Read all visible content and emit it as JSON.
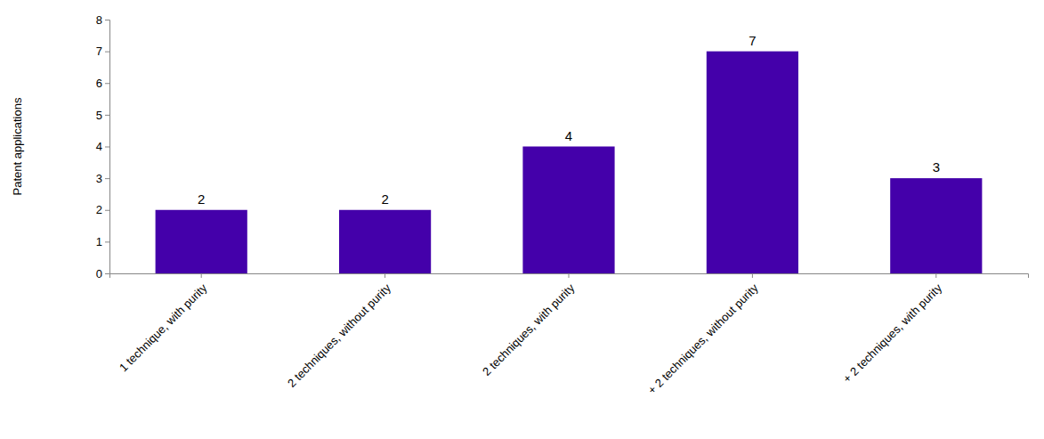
{
  "chart_data": {
    "type": "bar",
    "categories": [
      "1 technique, with purity",
      "2 techniques, without purity",
      "2 techniques, with purity",
      "+ 2 techniques, without purity",
      "+ 2 techniques, with purity"
    ],
    "values": [
      2,
      2,
      4,
      7,
      3
    ],
    "color": "#4400aa",
    "ylabel": "Patent applications",
    "ylim": [
      0,
      8
    ],
    "yticks": [
      0,
      1,
      2,
      3,
      4,
      5,
      6,
      7,
      8
    ],
    "grid": false,
    "data_labels": true
  }
}
